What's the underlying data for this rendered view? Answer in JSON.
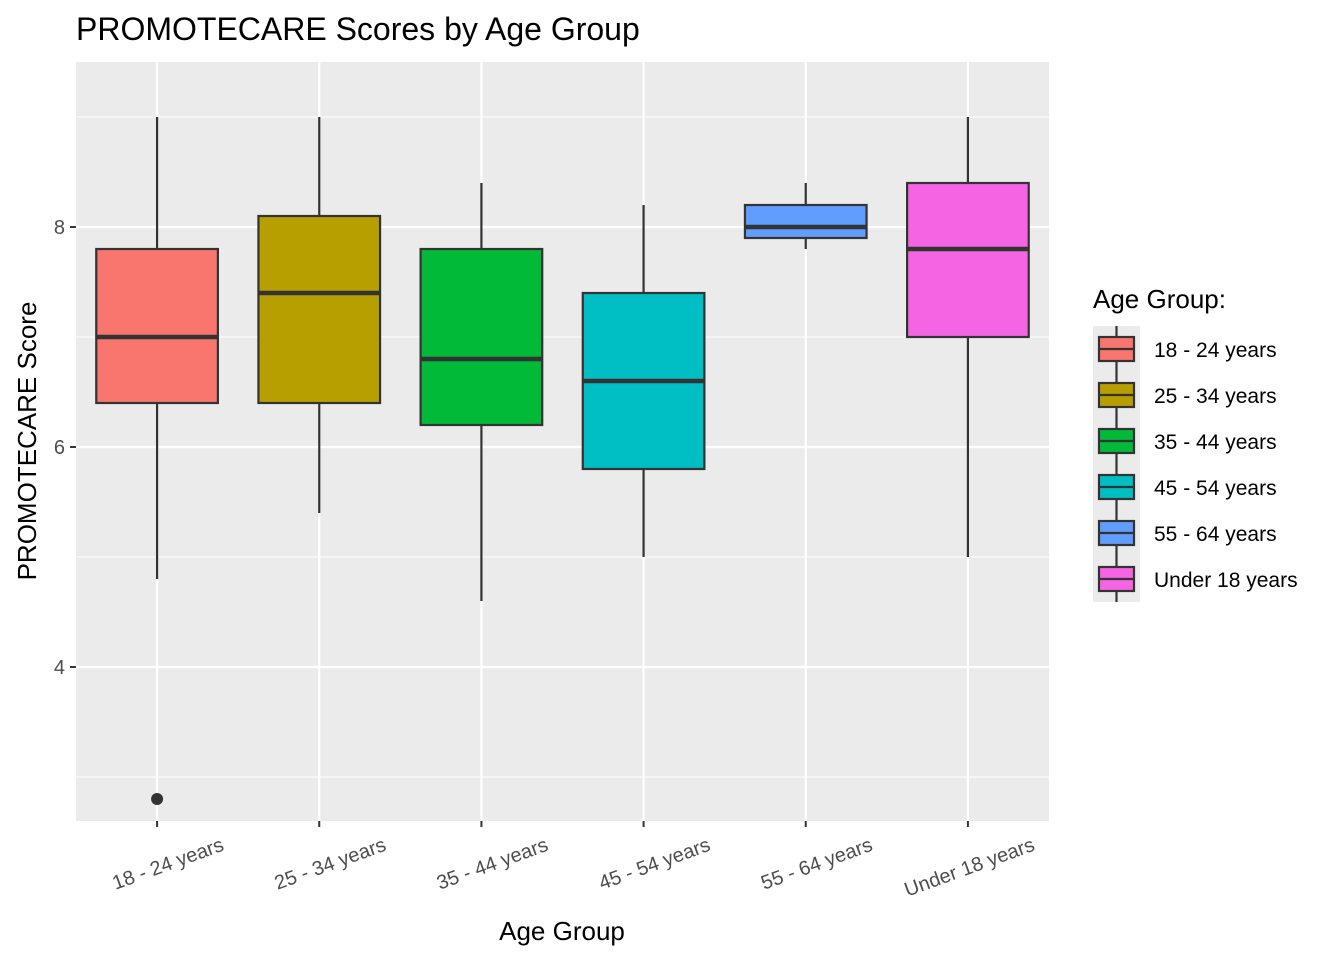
{
  "chart_data": {
    "type": "boxplot",
    "title": "PROMOTECARE Scores by Age Group",
    "xlabel": "Age Group",
    "ylabel": "PROMOTECARE Score",
    "ylim": [
      2.6,
      9.5
    ],
    "yticks": [
      4,
      6,
      8
    ],
    "grid": true,
    "legend": {
      "title": "Age Group:",
      "position": "right"
    },
    "categories": [
      "18 - 24 years",
      "25 - 34 years",
      "35 - 44 years",
      "45 - 54 years",
      "55 - 64 years",
      "Under 18 years"
    ],
    "colors": [
      "#F8766D",
      "#B79F00",
      "#00BA38",
      "#00BFC4",
      "#619CFF",
      "#F564E3"
    ],
    "boxes": [
      {
        "category": "18 - 24 years",
        "min": 4.8,
        "q1": 6.4,
        "median": 7.0,
        "q3": 7.8,
        "max": 9.0,
        "outliers": [
          2.8
        ]
      },
      {
        "category": "25 - 34 years",
        "min": 5.4,
        "q1": 6.4,
        "median": 7.4,
        "q3": 8.1,
        "max": 9.0,
        "outliers": []
      },
      {
        "category": "35 - 44 years",
        "min": 4.6,
        "q1": 6.2,
        "median": 6.8,
        "q3": 7.8,
        "max": 8.4,
        "outliers": []
      },
      {
        "category": "45 - 54 years",
        "min": 5.0,
        "q1": 5.8,
        "median": 6.6,
        "q3": 7.4,
        "max": 8.2,
        "outliers": []
      },
      {
        "category": "55 - 64 years",
        "min": 7.8,
        "q1": 7.9,
        "median": 8.0,
        "q3": 8.2,
        "max": 8.4,
        "outliers": []
      },
      {
        "category": "Under 18 years",
        "min": 5.0,
        "q1": 7.0,
        "median": 7.8,
        "q3": 8.4,
        "max": 9.0,
        "outliers": []
      }
    ]
  }
}
